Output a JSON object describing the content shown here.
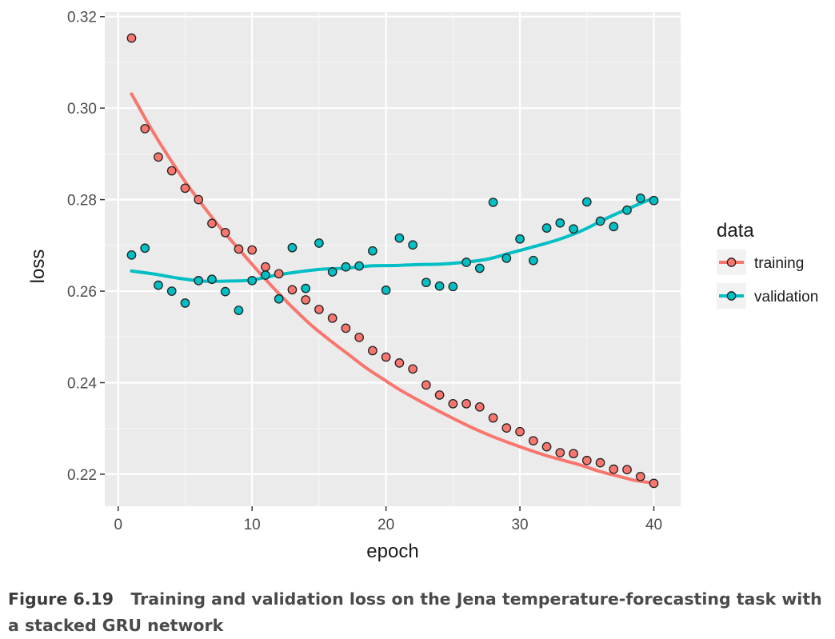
{
  "chart_data": {
    "type": "scatter",
    "xlabel": "epoch",
    "ylabel": "loss",
    "xlim": [
      -1,
      42
    ],
    "ylim": [
      0.213,
      0.321
    ],
    "x_ticks": [
      0,
      10,
      20,
      30,
      40
    ],
    "y_ticks": [
      0.22,
      0.24,
      0.26,
      0.28,
      0.3,
      0.32
    ],
    "x_tick_labels": [
      "0",
      "10",
      "20",
      "30",
      "40"
    ],
    "y_tick_labels": [
      "0.22",
      "0.24",
      "0.26",
      "0.28",
      "0.30",
      "0.32"
    ],
    "grid": true,
    "legend": {
      "title": "data",
      "position": "right"
    },
    "smooth": true,
    "series": [
      {
        "name": "training",
        "color": "#f8766d",
        "x": [
          1,
          2,
          3,
          4,
          5,
          6,
          7,
          8,
          9,
          10,
          11,
          12,
          13,
          14,
          15,
          16,
          17,
          18,
          19,
          20,
          21,
          22,
          23,
          24,
          25,
          26,
          27,
          28,
          29,
          30,
          31,
          32,
          33,
          34,
          35,
          36,
          37,
          38,
          39,
          40
        ],
        "y": [
          0.3153,
          0.2955,
          0.2893,
          0.2863,
          0.2825,
          0.28,
          0.2748,
          0.2728,
          0.2692,
          0.269,
          0.2653,
          0.2638,
          0.2603,
          0.2581,
          0.256,
          0.2541,
          0.2519,
          0.2499,
          0.247,
          0.2456,
          0.2443,
          0.243,
          0.2395,
          0.2373,
          0.2354,
          0.2354,
          0.2347,
          0.2323,
          0.2301,
          0.2293,
          0.2273,
          0.226,
          0.2247,
          0.2245,
          0.223,
          0.2225,
          0.2211,
          0.221,
          0.2195,
          0.218
        ],
        "smooth_y": [
          0.3031,
          0.2961,
          0.2897,
          0.2838,
          0.2785,
          0.2735,
          0.269,
          0.2645,
          0.2602,
          0.2562,
          0.2525,
          0.2493,
          0.2463,
          0.2433,
          0.2407,
          0.2382,
          0.236,
          0.2339,
          0.2319,
          0.23,
          0.2283,
          0.2268,
          0.2254,
          0.2241,
          0.223,
          0.2219,
          0.2206,
          0.2196,
          0.2186,
          0.2181
        ]
      },
      {
        "name": "validation",
        "color": "#00bfc4",
        "x": [
          1,
          2,
          3,
          4,
          5,
          6,
          7,
          8,
          9,
          10,
          11,
          12,
          13,
          14,
          15,
          16,
          17,
          18,
          19,
          20,
          21,
          22,
          23,
          24,
          25,
          26,
          27,
          28,
          29,
          30,
          31,
          32,
          33,
          34,
          35,
          36,
          37,
          38,
          39,
          40
        ],
        "y": [
          0.2679,
          0.2694,
          0.2613,
          0.26,
          0.2574,
          0.2623,
          0.2626,
          0.2599,
          0.2558,
          0.2623,
          0.2635,
          0.2583,
          0.2695,
          0.2606,
          0.2705,
          0.2642,
          0.2653,
          0.2655,
          0.2688,
          0.2602,
          0.2716,
          0.2701,
          0.2619,
          0.2611,
          0.261,
          0.2663,
          0.265,
          0.2794,
          0.2672,
          0.2714,
          0.2667,
          0.2738,
          0.2749,
          0.2736,
          0.2795,
          0.2753,
          0.2741,
          0.2777,
          0.2803,
          0.2798
        ],
        "smooth_y": [
          0.2644,
          0.2637,
          0.2628,
          0.2622,
          0.2622,
          0.2624,
          0.2634,
          0.2642,
          0.2648,
          0.265,
          0.2655,
          0.2656,
          0.2658,
          0.2659,
          0.2663,
          0.267,
          0.2684,
          0.2698,
          0.2713,
          0.2733,
          0.2759,
          0.2782,
          0.2804
        ]
      }
    ]
  },
  "caption": {
    "figure_number": "Figure 6.19",
    "text": "Training and validation loss on the Jena temperature-forecasting task with a stacked GRU network"
  }
}
